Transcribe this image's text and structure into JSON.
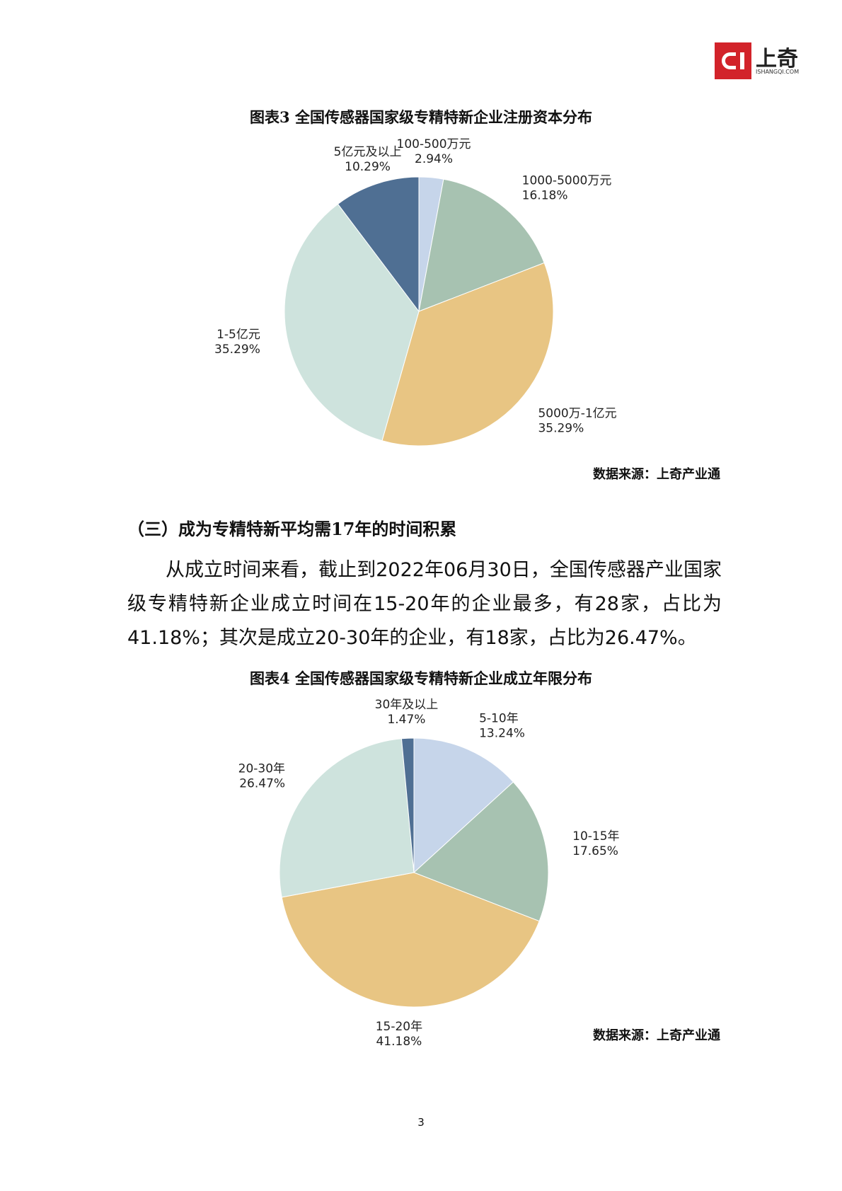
{
  "header": {
    "brand": "上奇",
    "site": "ISHANGQI.COM"
  },
  "chart_data": [
    {
      "type": "pie",
      "title": "图表3  全国传感器国家级专精特新企业注册资本分布",
      "categories": [
        "100-500万元",
        "1000-5000万元",
        "5000万-1亿元",
        "1-5亿元",
        "5亿元及以上"
      ],
      "values": [
        2.94,
        16.18,
        35.29,
        35.29,
        10.29
      ],
      "value_labels": [
        "2.94%",
        "16.18%",
        "35.29%",
        "35.29%",
        "10.29%"
      ],
      "colors": [
        "#c6d5ea",
        "#a7c2b1",
        "#e8c583",
        "#cee3dd",
        "#4f6f93"
      ],
      "source": "数据来源：上奇产业通"
    },
    {
      "type": "pie",
      "title": "图表4  全国传感器国家级专精特新企业成立年限分布",
      "categories": [
        "5-10年",
        "10-15年",
        "15-20年",
        "20-30年",
        "30年及以上"
      ],
      "values": [
        13.24,
        17.65,
        41.18,
        26.47,
        1.47
      ],
      "value_labels": [
        "13.24%",
        "17.65%",
        "41.18%",
        "26.47%",
        "1.47%"
      ],
      "colors": [
        "#c6d5ea",
        "#a7c2b1",
        "#e8c583",
        "#cee3dd",
        "#4f6f93"
      ],
      "source": "数据来源：上奇产业通"
    }
  ],
  "section": {
    "heading": "（三）成为专精特新平均需17年的时间积累",
    "paragraph": "从成立时间来看，截止到2022年06月30日，全国传感器产业国家级专精特新企业成立时间在15-20年的企业最多，有28家，占比为41.18%；其次是成立20-30年的企业，有18家，占比为26.47%。"
  },
  "page_number": "3"
}
